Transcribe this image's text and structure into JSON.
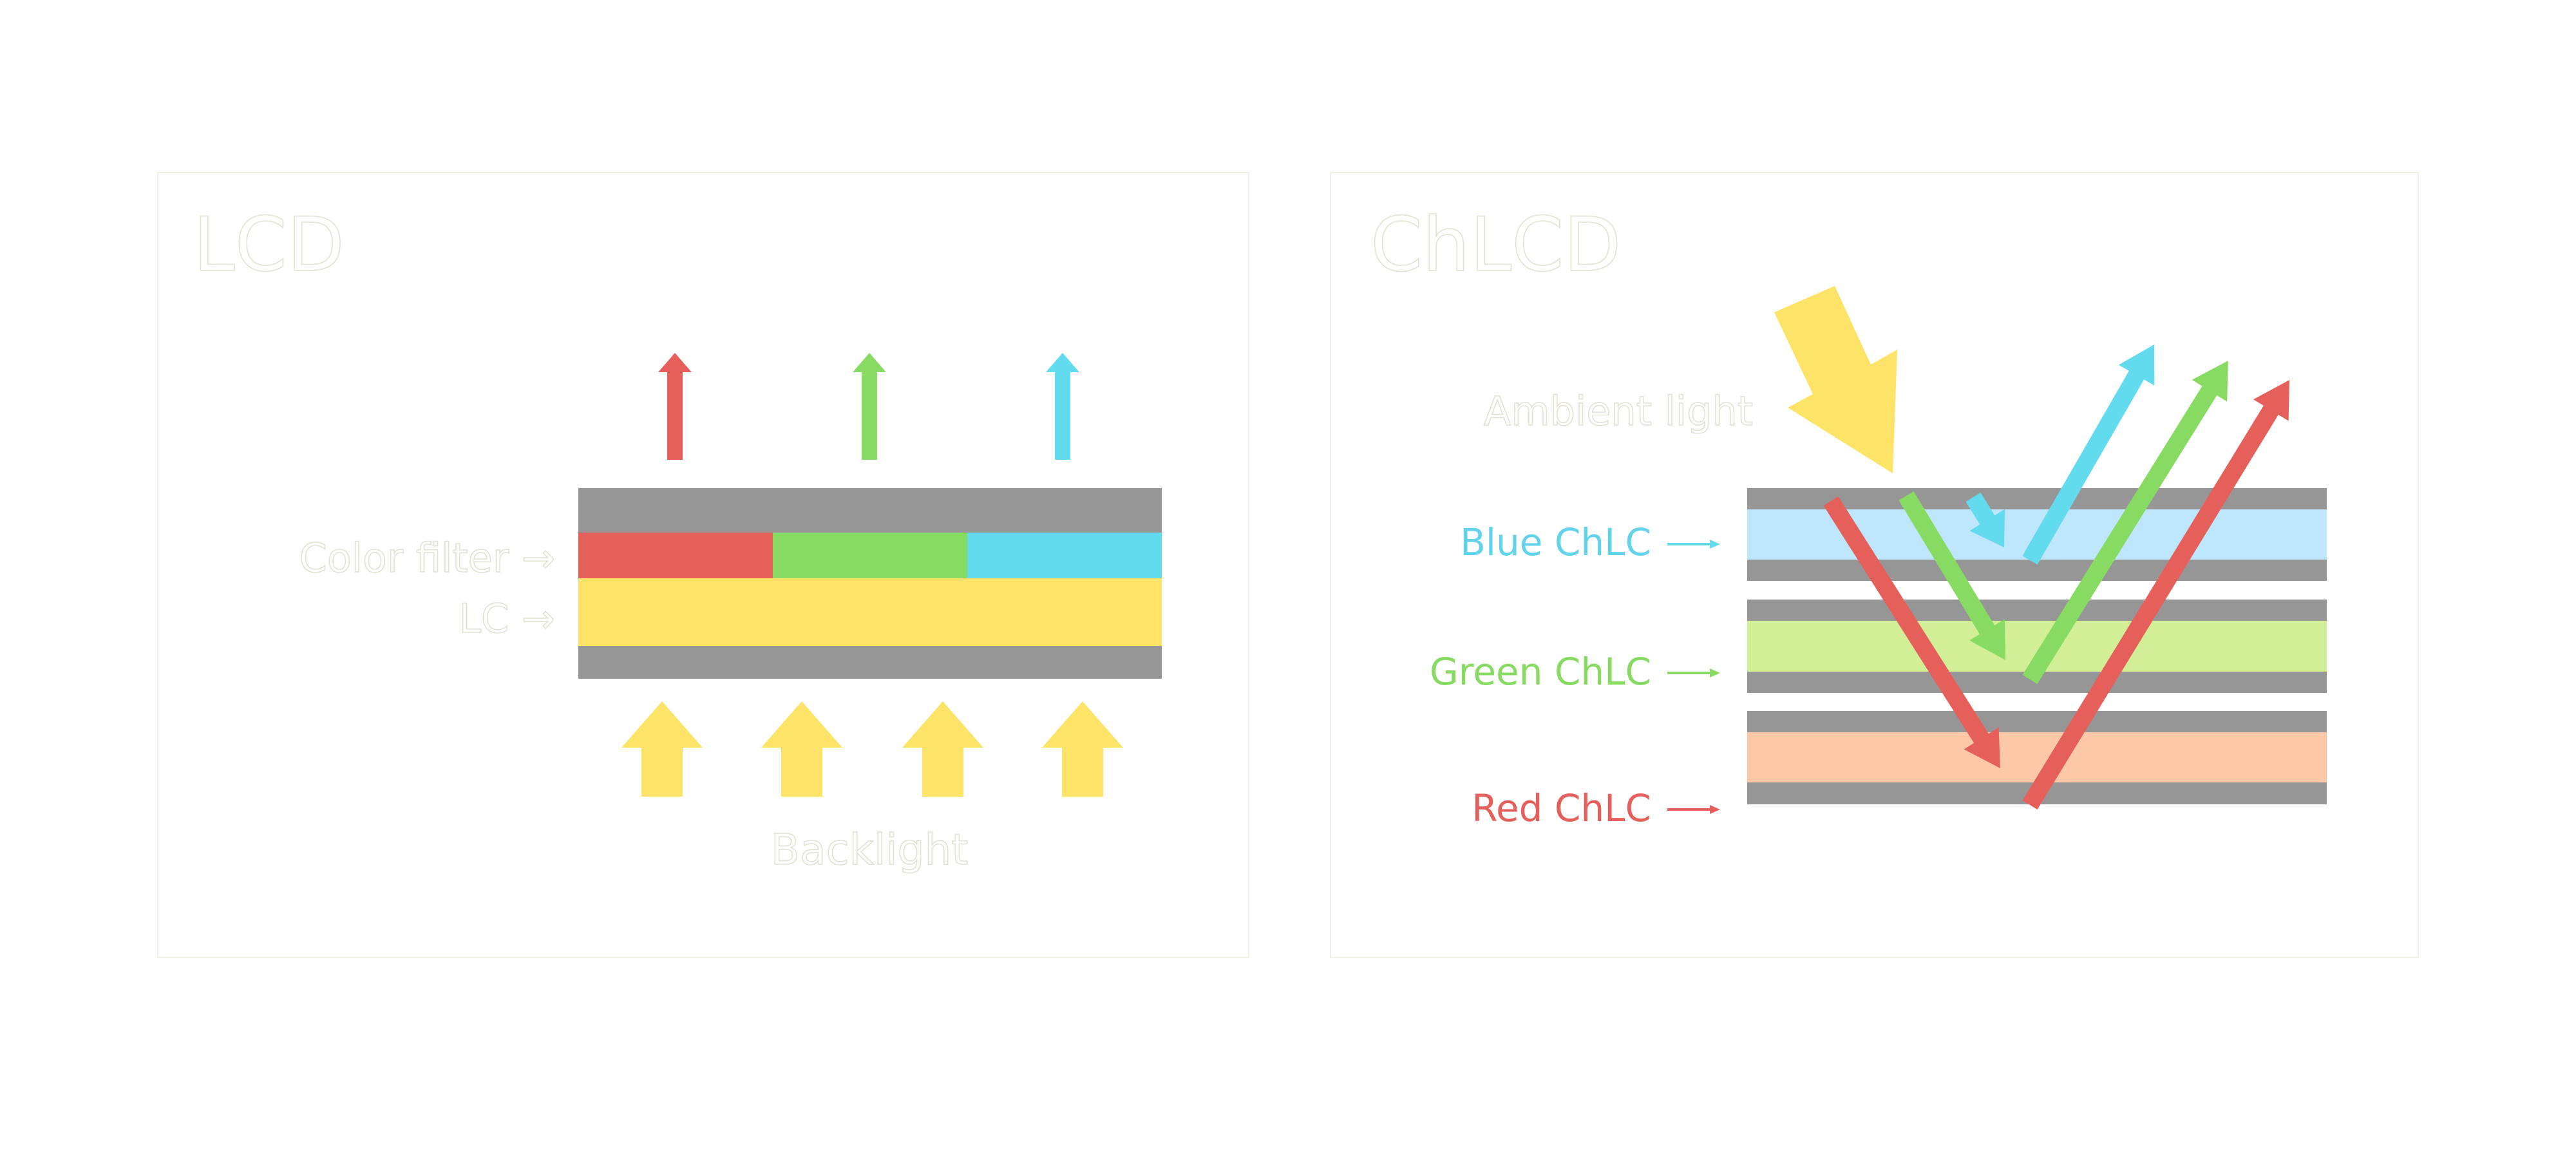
{
  "lcd_panel": {
    "title": "LCD",
    "color_filter_label": "Color filter →",
    "lc_label": "LC →",
    "backlight_label": "Backlight"
  },
  "chlcd_panel": {
    "title": "ChLCD",
    "ambient_label": "Ambient light",
    "blue_label": "Blue ChLC",
    "green_label": "Green ChLC",
    "red_label": "Red ChLC"
  },
  "colors": {
    "red": "#E5605B",
    "green": "#88DB62",
    "cyan": "#62DBEE",
    "yellow": "#FDE468",
    "gray": "#969696",
    "blue_layer": "#BEE6FC",
    "green_layer": "#D2EF98",
    "red_layer": "#FDC8A8"
  }
}
